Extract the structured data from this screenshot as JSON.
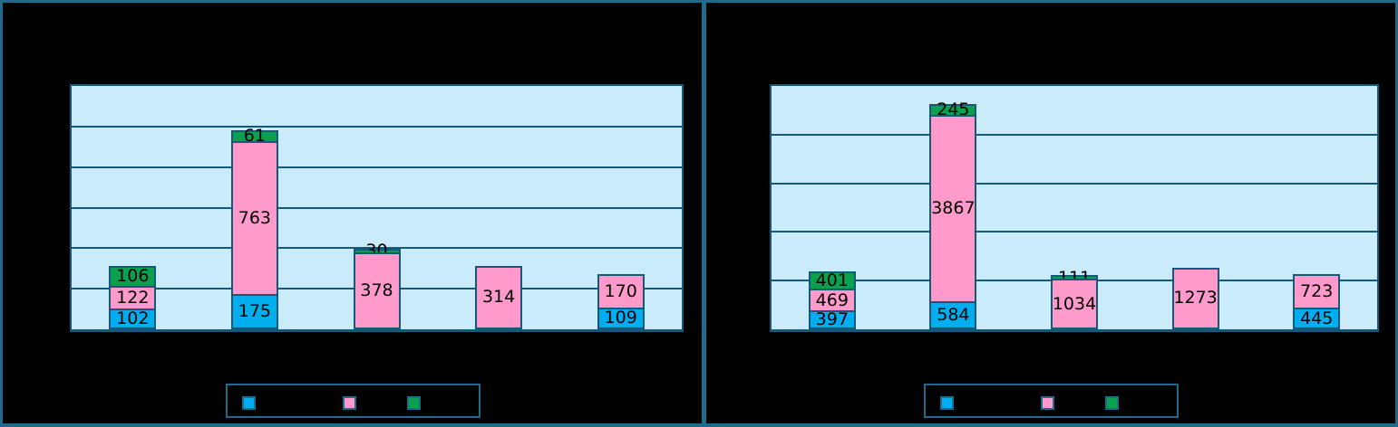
{
  "colors": {
    "background": "#000000",
    "frame": "#1E6B8E",
    "plot_bg": "#CAEBFA",
    "plot_line": "#15587A",
    "series_blue": "#00ADEF",
    "series_pink": "#FF9ACB",
    "series_green": "#0AA04E",
    "label_text": "#000000"
  },
  "chart_data": [
    {
      "type": "bar",
      "stacked": true,
      "panel": "left",
      "title": "",
      "xlabel": "",
      "ylabel": "",
      "axis_text_visible": false,
      "categories": [
        "",
        "",
        "",
        "",
        ""
      ],
      "series": [
        {
          "name": "series-blue",
          "color_key": "series_blue",
          "values": [
            102,
            175,
            null,
            null,
            109
          ]
        },
        {
          "name": "series-pink",
          "color_key": "series_pink",
          "values": [
            122,
            763,
            378,
            314,
            170
          ]
        },
        {
          "name": "series-green",
          "color_key": "series_green",
          "values": [
            106,
            61,
            30,
            null,
            null
          ]
        }
      ],
      "data_labels_visible": true,
      "ylim": [
        0,
        1200
      ],
      "gridline_step": 200,
      "grid_divisions": 6,
      "grid_on": true,
      "legend": {
        "position": "bottom",
        "labels_visible": false,
        "swatch_color_keys": [
          "series_blue",
          "series_pink",
          "series_green"
        ]
      }
    },
    {
      "type": "bar",
      "stacked": true,
      "panel": "right",
      "title": "",
      "xlabel": "",
      "ylabel": "",
      "axis_text_visible": false,
      "categories": [
        "",
        "",
        "",
        "",
        ""
      ],
      "series": [
        {
          "name": "series-blue",
          "color_key": "series_blue",
          "values": [
            397,
            584,
            null,
            null,
            445
          ]
        },
        {
          "name": "series-pink",
          "color_key": "series_pink",
          "values": [
            469,
            3867,
            1034,
            1273,
            723
          ]
        },
        {
          "name": "series-green",
          "color_key": "series_green",
          "values": [
            401,
            245,
            111,
            null,
            null
          ]
        }
      ],
      "data_labels_visible": true,
      "ylim": [
        0,
        5000
      ],
      "gridline_step": 1000,
      "grid_divisions": 5,
      "grid_on": true,
      "legend": {
        "position": "bottom",
        "labels_visible": false,
        "swatch_color_keys": [
          "series_blue",
          "series_pink",
          "series_green"
        ]
      }
    }
  ]
}
